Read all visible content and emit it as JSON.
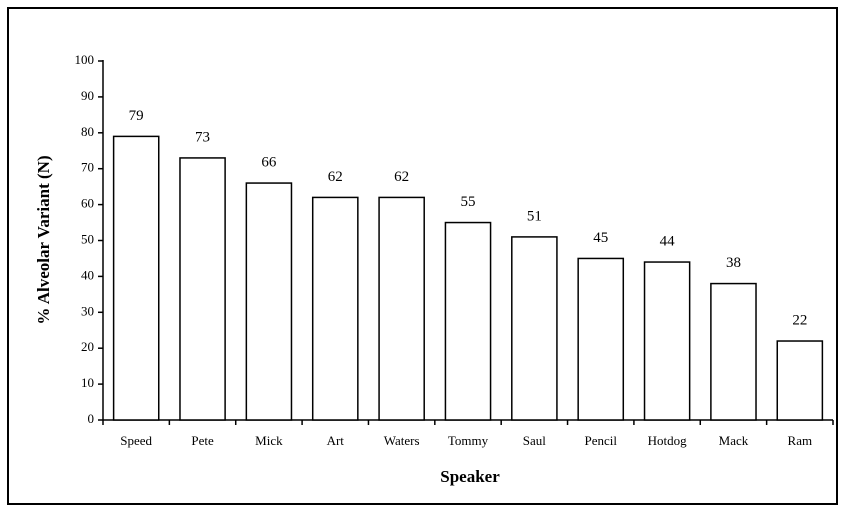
{
  "chart_data": {
    "type": "bar",
    "categories": [
      "Speed",
      "Pete",
      "Mick",
      "Art",
      "Waters",
      "Tommy",
      "Saul",
      "Pencil",
      "Hotdog",
      "Mack",
      "Ram"
    ],
    "values": [
      79,
      73,
      66,
      62,
      62,
      55,
      51,
      45,
      44,
      38,
      22
    ],
    "color": "#ffffff",
    "xlabel": "Speaker",
    "ylabel": "% Alveolar Variant (N)",
    "ylim": [
      0,
      100
    ],
    "yticks": [
      0,
      10,
      20,
      30,
      40,
      50,
      60,
      70,
      80,
      90,
      100
    ],
    "grid": false
  }
}
